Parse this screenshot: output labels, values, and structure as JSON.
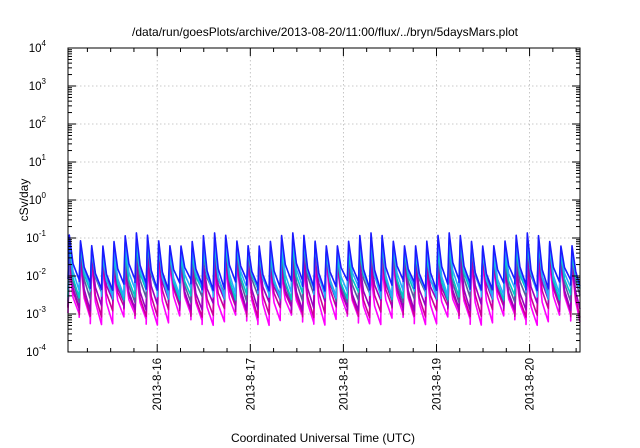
{
  "chart_data": {
    "type": "line",
    "title": "/data/run/goesPlots/archive/2013-08-20/11:00/flux/../bryn/5daysMars.plot",
    "xlabel": "Coordinated Universal Time (UTC)",
    "ylabel": "cSv/day",
    "xlim": [
      "2013-08-15T01:00",
      "2013-08-20T13:00"
    ],
    "ylim": [
      0.0001,
      10000
    ],
    "yscale": "log",
    "y_ticks": [
      {
        "base": "10",
        "exp": "-4",
        "value": 0.0001
      },
      {
        "base": "10",
        "exp": "-3",
        "value": 0.001
      },
      {
        "base": "10",
        "exp": "-2",
        "value": 0.01
      },
      {
        "base": "10",
        "exp": "-1",
        "value": 0.1
      },
      {
        "base": "10",
        "exp": "0",
        "value": 1
      },
      {
        "base": "10",
        "exp": "1",
        "value": 10
      },
      {
        "base": "10",
        "exp": "2",
        "value": 100
      },
      {
        "base": "10",
        "exp": "3",
        "value": 1000
      },
      {
        "base": "10",
        "exp": "4",
        "value": 10000
      }
    ],
    "x_ticks": [
      {
        "label": "2013-8-16",
        "value": "2013-08-16T00:00"
      },
      {
        "label": "2013-8-17",
        "value": "2013-08-17T00:00"
      },
      {
        "label": "2013-8-18",
        "value": "2013-08-18T00:00"
      },
      {
        "label": "2013-8-19",
        "value": "2013-08-19T00:00"
      },
      {
        "label": "2013-8-20",
        "value": "2013-08-20T00:00"
      }
    ],
    "grid": true,
    "legend": "none",
    "series_style": {
      "pattern": "sawtooth",
      "period_hours": 2.88,
      "start": "2013-08-15T01:00",
      "end": "2013-08-20T13:00"
    },
    "series": [
      {
        "color": "#1a1aff",
        "peak": 0.09,
        "trough": 0.006
      },
      {
        "color": "#2aa8ff",
        "peak": 0.07,
        "trough": 0.004
      },
      {
        "color": "#00c8c8",
        "peak": 0.05,
        "trough": 0.0035
      },
      {
        "color": "#5a5aa0",
        "peak": 0.045,
        "trough": 0.003
      },
      {
        "color": "#9a00c0",
        "peak": 0.03,
        "trough": 0.0018
      },
      {
        "color": "#cc0099",
        "peak": 0.022,
        "trough": 0.0012
      },
      {
        "color": "#ff00ff",
        "peak": 0.016,
        "trough": 0.00075
      }
    ]
  }
}
